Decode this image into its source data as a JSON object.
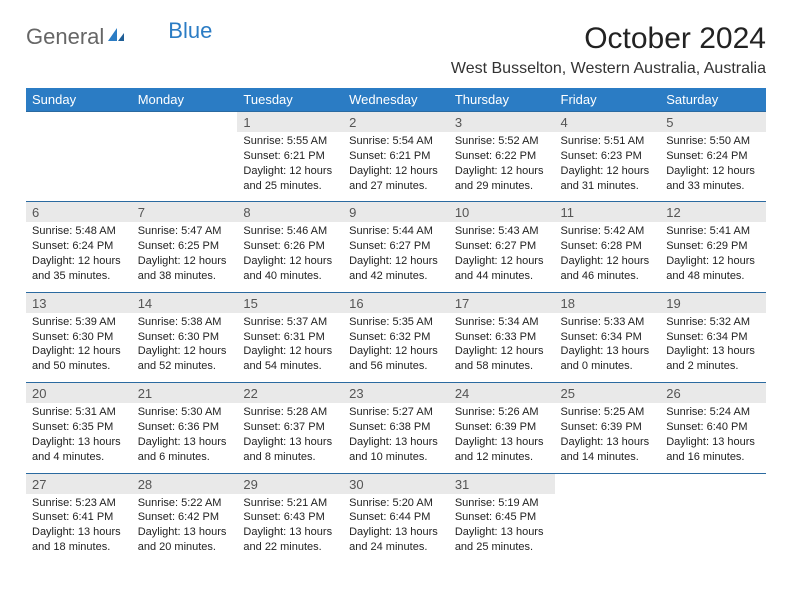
{
  "logo": {
    "text1": "General",
    "text2": "Blue"
  },
  "title": "October 2024",
  "location": "West Busselton, Western Australia, Australia",
  "colors": {
    "header_bg": "#2b7cc4",
    "header_text": "#ffffff",
    "daynum_bg": "#e9e9e9",
    "row_border": "#2b6aa0"
  },
  "daysOfWeek": [
    "Sunday",
    "Monday",
    "Tuesday",
    "Wednesday",
    "Thursday",
    "Friday",
    "Saturday"
  ],
  "weeks": [
    [
      null,
      null,
      {
        "n": "1",
        "sr": "Sunrise: 5:55 AM",
        "ss": "Sunset: 6:21 PM",
        "d1": "Daylight: 12 hours",
        "d2": "and 25 minutes."
      },
      {
        "n": "2",
        "sr": "Sunrise: 5:54 AM",
        "ss": "Sunset: 6:21 PM",
        "d1": "Daylight: 12 hours",
        "d2": "and 27 minutes."
      },
      {
        "n": "3",
        "sr": "Sunrise: 5:52 AM",
        "ss": "Sunset: 6:22 PM",
        "d1": "Daylight: 12 hours",
        "d2": "and 29 minutes."
      },
      {
        "n": "4",
        "sr": "Sunrise: 5:51 AM",
        "ss": "Sunset: 6:23 PM",
        "d1": "Daylight: 12 hours",
        "d2": "and 31 minutes."
      },
      {
        "n": "5",
        "sr": "Sunrise: 5:50 AM",
        "ss": "Sunset: 6:24 PM",
        "d1": "Daylight: 12 hours",
        "d2": "and 33 minutes."
      }
    ],
    [
      {
        "n": "6",
        "sr": "Sunrise: 5:48 AM",
        "ss": "Sunset: 6:24 PM",
        "d1": "Daylight: 12 hours",
        "d2": "and 35 minutes."
      },
      {
        "n": "7",
        "sr": "Sunrise: 5:47 AM",
        "ss": "Sunset: 6:25 PM",
        "d1": "Daylight: 12 hours",
        "d2": "and 38 minutes."
      },
      {
        "n": "8",
        "sr": "Sunrise: 5:46 AM",
        "ss": "Sunset: 6:26 PM",
        "d1": "Daylight: 12 hours",
        "d2": "and 40 minutes."
      },
      {
        "n": "9",
        "sr": "Sunrise: 5:44 AM",
        "ss": "Sunset: 6:27 PM",
        "d1": "Daylight: 12 hours",
        "d2": "and 42 minutes."
      },
      {
        "n": "10",
        "sr": "Sunrise: 5:43 AM",
        "ss": "Sunset: 6:27 PM",
        "d1": "Daylight: 12 hours",
        "d2": "and 44 minutes."
      },
      {
        "n": "11",
        "sr": "Sunrise: 5:42 AM",
        "ss": "Sunset: 6:28 PM",
        "d1": "Daylight: 12 hours",
        "d2": "and 46 minutes."
      },
      {
        "n": "12",
        "sr": "Sunrise: 5:41 AM",
        "ss": "Sunset: 6:29 PM",
        "d1": "Daylight: 12 hours",
        "d2": "and 48 minutes."
      }
    ],
    [
      {
        "n": "13",
        "sr": "Sunrise: 5:39 AM",
        "ss": "Sunset: 6:30 PM",
        "d1": "Daylight: 12 hours",
        "d2": "and 50 minutes."
      },
      {
        "n": "14",
        "sr": "Sunrise: 5:38 AM",
        "ss": "Sunset: 6:30 PM",
        "d1": "Daylight: 12 hours",
        "d2": "and 52 minutes."
      },
      {
        "n": "15",
        "sr": "Sunrise: 5:37 AM",
        "ss": "Sunset: 6:31 PM",
        "d1": "Daylight: 12 hours",
        "d2": "and 54 minutes."
      },
      {
        "n": "16",
        "sr": "Sunrise: 5:35 AM",
        "ss": "Sunset: 6:32 PM",
        "d1": "Daylight: 12 hours",
        "d2": "and 56 minutes."
      },
      {
        "n": "17",
        "sr": "Sunrise: 5:34 AM",
        "ss": "Sunset: 6:33 PM",
        "d1": "Daylight: 12 hours",
        "d2": "and 58 minutes."
      },
      {
        "n": "18",
        "sr": "Sunrise: 5:33 AM",
        "ss": "Sunset: 6:34 PM",
        "d1": "Daylight: 13 hours",
        "d2": "and 0 minutes."
      },
      {
        "n": "19",
        "sr": "Sunrise: 5:32 AM",
        "ss": "Sunset: 6:34 PM",
        "d1": "Daylight: 13 hours",
        "d2": "and 2 minutes."
      }
    ],
    [
      {
        "n": "20",
        "sr": "Sunrise: 5:31 AM",
        "ss": "Sunset: 6:35 PM",
        "d1": "Daylight: 13 hours",
        "d2": "and 4 minutes."
      },
      {
        "n": "21",
        "sr": "Sunrise: 5:30 AM",
        "ss": "Sunset: 6:36 PM",
        "d1": "Daylight: 13 hours",
        "d2": "and 6 minutes."
      },
      {
        "n": "22",
        "sr": "Sunrise: 5:28 AM",
        "ss": "Sunset: 6:37 PM",
        "d1": "Daylight: 13 hours",
        "d2": "and 8 minutes."
      },
      {
        "n": "23",
        "sr": "Sunrise: 5:27 AM",
        "ss": "Sunset: 6:38 PM",
        "d1": "Daylight: 13 hours",
        "d2": "and 10 minutes."
      },
      {
        "n": "24",
        "sr": "Sunrise: 5:26 AM",
        "ss": "Sunset: 6:39 PM",
        "d1": "Daylight: 13 hours",
        "d2": "and 12 minutes."
      },
      {
        "n": "25",
        "sr": "Sunrise: 5:25 AM",
        "ss": "Sunset: 6:39 PM",
        "d1": "Daylight: 13 hours",
        "d2": "and 14 minutes."
      },
      {
        "n": "26",
        "sr": "Sunrise: 5:24 AM",
        "ss": "Sunset: 6:40 PM",
        "d1": "Daylight: 13 hours",
        "d2": "and 16 minutes."
      }
    ],
    [
      {
        "n": "27",
        "sr": "Sunrise: 5:23 AM",
        "ss": "Sunset: 6:41 PM",
        "d1": "Daylight: 13 hours",
        "d2": "and 18 minutes."
      },
      {
        "n": "28",
        "sr": "Sunrise: 5:22 AM",
        "ss": "Sunset: 6:42 PM",
        "d1": "Daylight: 13 hours",
        "d2": "and 20 minutes."
      },
      {
        "n": "29",
        "sr": "Sunrise: 5:21 AM",
        "ss": "Sunset: 6:43 PM",
        "d1": "Daylight: 13 hours",
        "d2": "and 22 minutes."
      },
      {
        "n": "30",
        "sr": "Sunrise: 5:20 AM",
        "ss": "Sunset: 6:44 PM",
        "d1": "Daylight: 13 hours",
        "d2": "and 24 minutes."
      },
      {
        "n": "31",
        "sr": "Sunrise: 5:19 AM",
        "ss": "Sunset: 6:45 PM",
        "d1": "Daylight: 13 hours",
        "d2": "and 25 minutes."
      },
      null,
      null
    ]
  ]
}
